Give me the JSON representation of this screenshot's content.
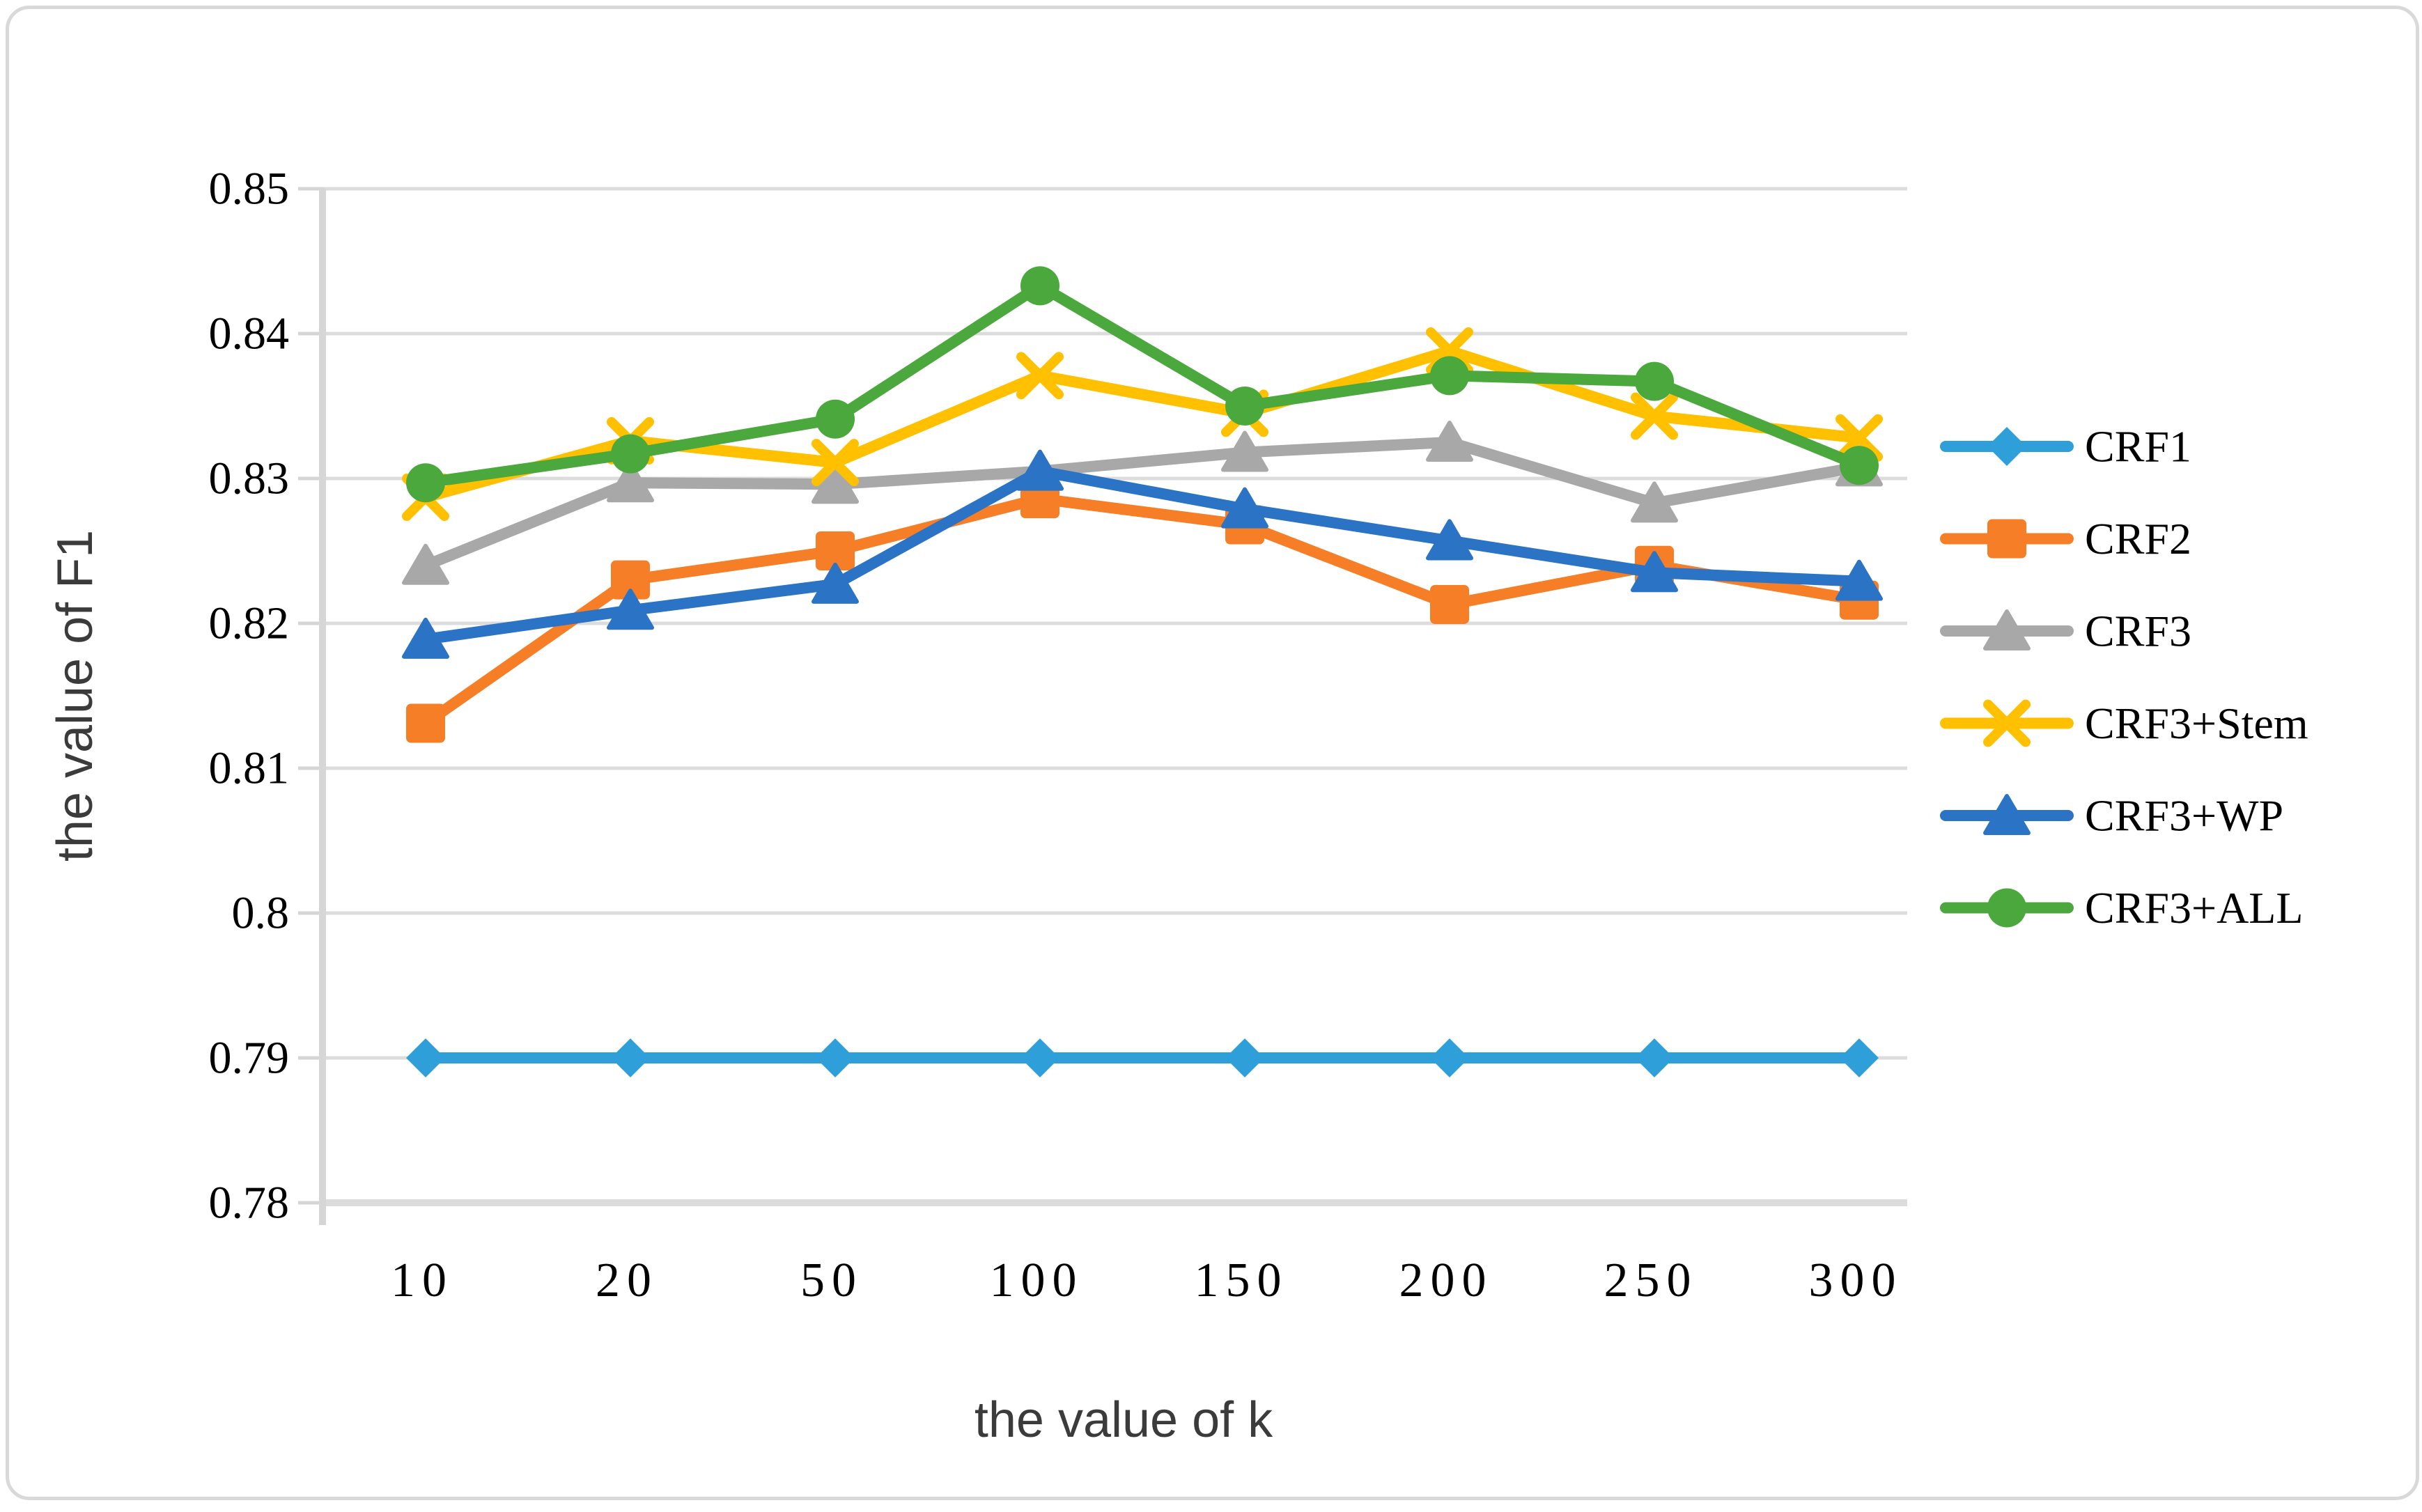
{
  "figure": {
    "x_axis_title": "the value of k",
    "y_axis_title": "the value of F1"
  },
  "chart_data": {
    "type": "line",
    "title": "",
    "xlabel": "the value of k",
    "ylabel": "the value of F1",
    "categories": [
      "10",
      "20",
      "50",
      "100",
      "150",
      "200",
      "250",
      "300"
    ],
    "ylim": [
      0.78,
      0.85
    ],
    "y_tick_step": 0.01,
    "y_tick_labels": [
      "0.85",
      "0.84",
      "0.83",
      "0.82",
      "0.81",
      "0.8",
      "0.79",
      "0.78"
    ],
    "grid": "horizontal",
    "legend_position": "right",
    "colors": {
      "grid": "#dcdcdc",
      "axis": "#d6d6d6",
      "text": "#000000"
    },
    "series": [
      {
        "name": "CRF1",
        "color": "#2e9fd9",
        "marker": "diamond",
        "values": [
          0.79,
          0.79,
          0.79,
          0.79,
          0.79,
          0.79,
          0.79,
          0.79
        ]
      },
      {
        "name": "CRF2",
        "color": "#f57e27",
        "marker": "square",
        "values": [
          0.8131,
          0.823,
          0.825,
          0.8286,
          0.8268,
          0.8213,
          0.824,
          0.8216
        ]
      },
      {
        "name": "CRF3",
        "color": "#a8a8a8",
        "marker": "triangle",
        "values": [
          0.824,
          0.8297,
          0.8296,
          0.8305,
          0.8318,
          0.8325,
          0.8283,
          0.8308
        ]
      },
      {
        "name": "CRF3+Stem",
        "color": "#ffc000",
        "marker": "x",
        "values": [
          0.8287,
          0.8326,
          0.8311,
          0.8371,
          0.8345,
          0.8388,
          0.8343,
          0.8328
        ]
      },
      {
        "name": "CRF3+WP",
        "color": "#2a73c5",
        "marker": "triangle",
        "values": [
          0.8189,
          0.8209,
          0.8227,
          0.8305,
          0.8279,
          0.8257,
          0.8235,
          0.8229
        ]
      },
      {
        "name": "CRF3+ALL",
        "color": "#4ba83d",
        "marker": "circle",
        "values": [
          0.8297,
          0.8317,
          0.8341,
          0.8433,
          0.835,
          0.8371,
          0.8367,
          0.8309
        ]
      }
    ]
  }
}
